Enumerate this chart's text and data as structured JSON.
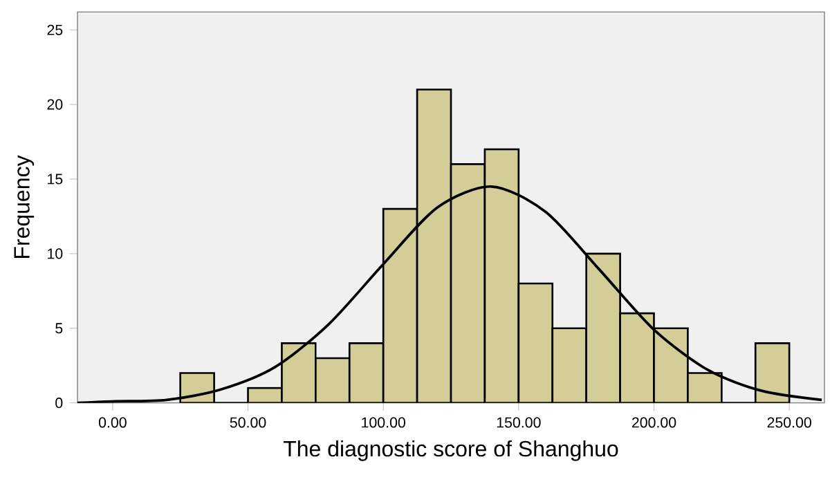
{
  "chart_data": {
    "type": "histogram",
    "xlabel": "The diagnostic score of Shanghuo",
    "ylabel": "Frequency",
    "bins": [
      25,
      37.5,
      50,
      62.5,
      75,
      87.5,
      100,
      112.5,
      125,
      137.5,
      150,
      162.5,
      175,
      187.5,
      200,
      212.5,
      225,
      237.5,
      250
    ],
    "values": [
      2,
      0,
      1,
      4,
      3,
      4,
      13,
      21,
      16,
      17,
      8,
      5,
      10,
      6,
      5,
      2,
      0,
      4
    ],
    "color": "#d3cd98",
    "series": [
      {
        "type": "line",
        "color": "#000000",
        "x": [
          -13,
          0,
          20,
          40,
          60,
          80,
          100,
          120,
          140,
          160,
          180,
          200,
          220,
          240,
          262
        ],
        "values": [
          0,
          0.1,
          0.2,
          0.9,
          2.4,
          5.3,
          9.3,
          13.1,
          14.5,
          12.8,
          8.9,
          4.9,
          2.2,
          0.8,
          0.2
        ]
      }
    ],
    "xlim": [
      -13,
      263
    ],
    "ylim": [
      0,
      26.2
    ],
    "xticks": [
      {
        "value": 0,
        "label": "0.00"
      },
      {
        "value": 50,
        "label": "50.00"
      },
      {
        "value": 100,
        "label": "100.00"
      },
      {
        "value": 150,
        "label": "150.00"
      },
      {
        "value": 200,
        "label": "200.00"
      },
      {
        "value": 250,
        "label": "250.00"
      }
    ],
    "yticks": [
      0,
      5,
      10,
      15,
      20,
      25
    ]
  }
}
